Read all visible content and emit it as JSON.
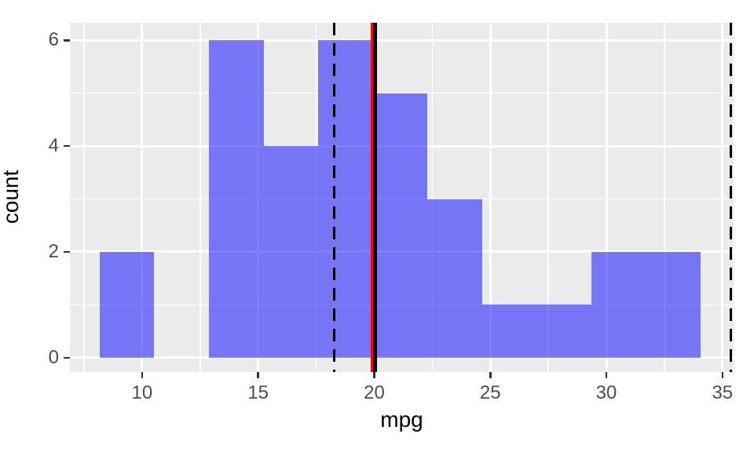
{
  "chart_data": {
    "type": "bar",
    "subtype": "histogram",
    "title": "",
    "xlabel": "mpg",
    "ylabel": "count",
    "x_ticks": [
      10,
      15,
      20,
      25,
      30,
      35
    ],
    "x_minor_gridlines": [
      7.5,
      12.5,
      17.5,
      22.5,
      27.5,
      32.5
    ],
    "y_ticks": [
      0,
      2,
      4,
      6
    ],
    "y_minor_gridlines": [
      1,
      3,
      5
    ],
    "xlim": [
      6.89,
      35.48
    ],
    "ylim": [
      -0.27,
      6.33
    ],
    "grid": true,
    "legend": false,
    "bins": {
      "start": 8.17,
      "binwidth": 2.355,
      "counts": [
        2,
        0,
        6,
        4,
        6,
        5,
        3,
        1,
        1,
        2,
        2
      ]
    },
    "vlines": [
      {
        "x": 18.27,
        "style": "dashed",
        "color": "#000000",
        "width": 3
      },
      {
        "x": 19.9,
        "style": "solid",
        "color": "#ff0000",
        "width": 3
      },
      {
        "x": 20.03,
        "style": "solid",
        "color": "#000000",
        "width": 5
      },
      {
        "x": 35.35,
        "style": "dashed",
        "color": "#000000",
        "width": 3
      }
    ],
    "colors": {
      "bar_fill": "rgba(0, 0, 255, 0.5)",
      "panel_background": "#ebebeb",
      "gridline": "#ffffff",
      "tick_mark": "#333333",
      "tick_label": "#4d4d4d",
      "axis_title": "#000000",
      "figure_background": "#ffffff"
    }
  }
}
